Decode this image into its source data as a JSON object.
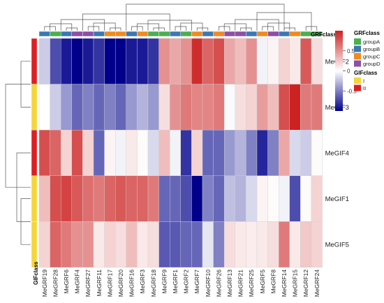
{
  "chart_data": {
    "type": "heatmap",
    "columns": [
      "MeGRF19",
      "MeGRF28",
      "MeGRF6",
      "MeGRF4",
      "MeGRF27",
      "MeGRF11",
      "MeGRF17",
      "MeGRF20",
      "MeGRF16",
      "MeGRF3",
      "MeGRF18",
      "MeGRF9",
      "MeGRF1",
      "MeGRF2",
      "MeGRF7",
      "MeGRF10",
      "MeGRF26",
      "MeGRF13",
      "MeGRF21",
      "MeGRF25",
      "MeGRF5",
      "MeGRF8",
      "MeGRF14",
      "MeGRF15",
      "MeGRF12",
      "MeGRF24"
    ],
    "rows": [
      "MeGIF2",
      "MeGIF3",
      "MeGIF4",
      "MeGIF1",
      "MeGIF5"
    ],
    "row_class": [
      "II",
      "I",
      "II",
      "I",
      "I"
    ],
    "col_class": [
      "groupB",
      "groupA",
      "groupB",
      "groupD",
      "groupD",
      "groupB",
      "groupC",
      "groupC",
      "groupB",
      "groupC",
      "groupA",
      "groupA",
      "groupB",
      "groupA",
      "groupC",
      "groupB",
      "groupC",
      "groupD",
      "groupD",
      "groupB",
      "groupC",
      "groupD",
      "groupB",
      "groupC",
      "groupA",
      "groupA"
    ],
    "values": [
      [
        -0.2,
        -0.7,
        -0.9,
        -1.0,
        -0.9,
        -0.8,
        -1.0,
        -1.0,
        -0.9,
        -0.9,
        -0.8,
        0.5,
        0.4,
        0.5,
        0.95,
        0.7,
        0.8,
        0.4,
        0.3,
        0.5,
        -0.05,
        0.05,
        0.2,
        0.1,
        0.75,
        0.15
      ],
      [
        0.0,
        -0.2,
        -0.4,
        -0.6,
        -0.5,
        -0.6,
        -0.5,
        -0.6,
        -0.4,
        -0.3,
        -0.4,
        0.15,
        0.5,
        0.6,
        0.55,
        0.55,
        0.6,
        -0.02,
        0.15,
        0.2,
        0.45,
        0.3,
        0.8,
        1.0,
        0.6,
        0.6
      ],
      [
        0.8,
        0.7,
        0.2,
        0.8,
        0.2,
        -0.6,
        0.05,
        -0.05,
        0.1,
        0.02,
        -0.15,
        0.3,
        -0.05,
        -0.8,
        0.2,
        -0.6,
        -0.6,
        -0.4,
        -0.3,
        -0.5,
        -0.85,
        -0.5,
        0.4,
        -0.15,
        -0.2,
        0.02
      ],
      [
        0.3,
        0.8,
        0.85,
        0.75,
        0.65,
        0.6,
        0.7,
        0.75,
        0.7,
        0.7,
        0.6,
        -0.6,
        -0.6,
        -0.7,
        -1.0,
        -0.5,
        -0.6,
        -0.25,
        -0.3,
        -0.15,
        0.05,
        0.02,
        -0.05,
        -0.7,
        0.02,
        0.2
      ],
      [
        0.2,
        0.7,
        0.6,
        0.5,
        0.5,
        0.1,
        0.2,
        0.15,
        0.3,
        0.1,
        0.15,
        -0.65,
        -0.65,
        -0.6,
        -0.6,
        -0.1,
        -0.5,
        0.15,
        0.1,
        0.08,
        0.1,
        0.15,
        0.6,
        0.1,
        0.25,
        0.2
      ]
    ],
    "scale": {
      "min": -1,
      "max": 1,
      "ticks": [
        0.5,
        0,
        -0.5
      ],
      "tick_labels": [
        "0.5",
        "0",
        "-0.5"
      ],
      "low_color": "#00008b",
      "mid_color": "#ffffff",
      "high_color": "#cc2222"
    },
    "class_colors": {
      "groupA": "#4caf50",
      "groupB": "#3b78b5",
      "groupC": "#f08a20",
      "groupD": "#8e4fa6",
      "I": "#f5d63a",
      "II": "#dd1f24"
    },
    "col_annotation_label": "GRFclass",
    "row_annotation_label": "GIFclass",
    "legend": {
      "grf_title": "GRFclass",
      "grf_items": [
        "groupA",
        "groupB",
        "groupC",
        "groupD"
      ],
      "gif_title": "GIFclass",
      "gif_items": [
        "I",
        "II"
      ]
    },
    "dendrograms": {
      "rows": true,
      "columns": true
    },
    "title": "",
    "grid": true
  }
}
